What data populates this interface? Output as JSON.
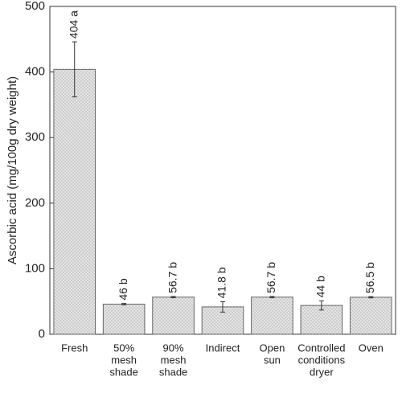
{
  "chart_data": {
    "type": "bar",
    "y_label": "Ascorbic acid (mg/100g dry weight)",
    "categories": [
      [
        "Fresh"
      ],
      [
        "50%",
        "mesh",
        "shade"
      ],
      [
        "90%",
        "mesh",
        "shade"
      ],
      [
        "Indirect"
      ],
      [
        "Open",
        "sun"
      ],
      [
        "Controlled",
        "conditions",
        "dryer"
      ],
      [
        "Oven"
      ]
    ],
    "values": [
      404,
      46,
      56.7,
      41.8,
      56.7,
      44,
      56.5
    ],
    "errors": [
      42,
      1,
      1,
      8,
      1,
      7,
      1
    ],
    "value_labels": [
      "404 a",
      "46 b",
      "56.7 b",
      "41.8 b",
      "56.7 b",
      "44 b",
      "56.5 b"
    ],
    "color": "#dcdcdc",
    "ylim": [
      0,
      500
    ],
    "yticks": [
      0,
      100,
      200,
      300,
      400,
      500
    ]
  }
}
